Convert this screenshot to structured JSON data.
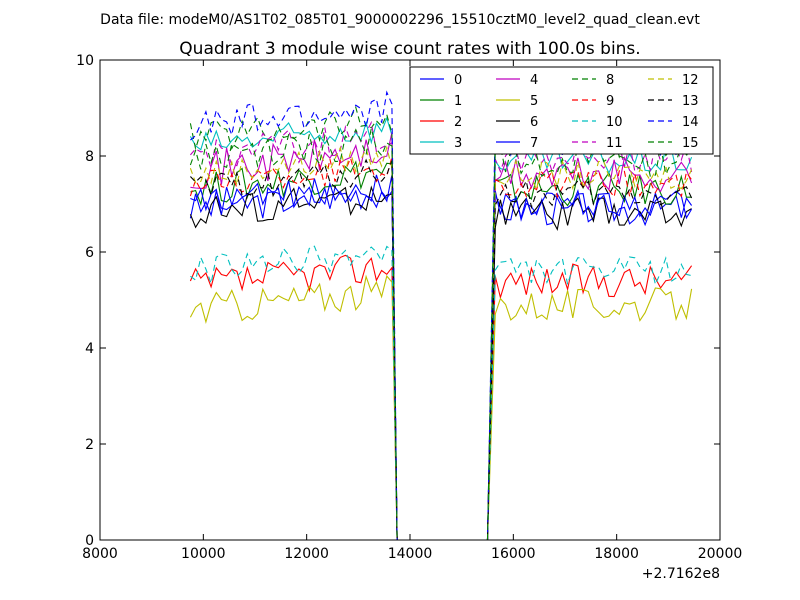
{
  "figure": {
    "suptitle": "Data file: modeM0/AS1T02_085T01_9000002296_15510cztM0_level2_quad_clean.evt"
  },
  "chart_data": {
    "type": "line",
    "title": "Quadrant 3 module wise count rates with 100.0s bins.",
    "xlabel": "",
    "ylabel": "",
    "x_offset_label": "+2.7162e8",
    "xlim": [
      8000,
      20000
    ],
    "ylim": [
      0,
      10
    ],
    "x_ticks": [
      8000,
      10000,
      12000,
      14000,
      16000,
      18000,
      20000
    ],
    "x_tick_labels": [
      "8000",
      "10000",
      "12000",
      "14000",
      "16000",
      "18000",
      "20000"
    ],
    "y_ticks": [
      0,
      2,
      4,
      6,
      8,
      10
    ],
    "y_tick_labels": [
      "0",
      "2",
      "4",
      "6",
      "8",
      "10"
    ],
    "grid": false,
    "legend_position": "top-right",
    "legend_columns": 4,
    "gap_start": 13750,
    "gap_end": 15500,
    "x": {
      "segment1": {
        "start": 9750,
        "end": 13650,
        "step": 100
      },
      "segment2": {
        "start": 15650,
        "end": 19450,
        "step": 100
      }
    },
    "series": [
      {
        "name": "0",
        "color": "#0000ff",
        "dash": "solid",
        "level1": 6.9,
        "level2": 6.9,
        "amplitude": 0.35
      },
      {
        "name": "1",
        "color": "#008000",
        "dash": "solid",
        "level1": 7.3,
        "level2": 7.3,
        "amplitude": 0.35
      },
      {
        "name": "2",
        "color": "#ff0000",
        "dash": "solid",
        "level1": 5.3,
        "level2": 5.4,
        "amplitude": 0.35
      },
      {
        "name": "3",
        "color": "#00bfbf",
        "dash": "solid",
        "level1": 8.2,
        "level2": 7.9,
        "amplitude": 0.3
      },
      {
        "name": "4",
        "color": "#bf00bf",
        "dash": "solid",
        "level1": 7.7,
        "level2": 7.6,
        "amplitude": 0.4
      },
      {
        "name": "5",
        "color": "#bfbf00",
        "dash": "solid",
        "level1": 4.8,
        "level2": 4.9,
        "amplitude": 0.35
      },
      {
        "name": "6",
        "color": "#000000",
        "dash": "solid",
        "level1": 6.8,
        "level2": 6.8,
        "amplitude": 0.35
      },
      {
        "name": "7",
        "color": "#0000ff",
        "dash": "solid",
        "level1": 7.0,
        "level2": 7.0,
        "amplitude": 0.3
      },
      {
        "name": "8",
        "color": "#008000",
        "dash": "dashed",
        "level1": 8.4,
        "level2": 8.3,
        "amplitude": 0.35
      },
      {
        "name": "9",
        "color": "#ff0000",
        "dash": "dashed",
        "level1": 7.4,
        "level2": 7.4,
        "amplitude": 0.3
      },
      {
        "name": "10",
        "color": "#00bfbf",
        "dash": "dashed",
        "level1": 5.6,
        "level2": 5.6,
        "amplitude": 0.3
      },
      {
        "name": "11",
        "color": "#bf00bf",
        "dash": "dashed",
        "level1": 8.0,
        "level2": 8.0,
        "amplitude": 0.35
      },
      {
        "name": "12",
        "color": "#bfbf00",
        "dash": "dashed",
        "level1": 7.6,
        "level2": 7.6,
        "amplitude": 0.3
      },
      {
        "name": "13",
        "color": "#000000",
        "dash": "dashed",
        "level1": 7.3,
        "level2": 7.2,
        "amplitude": 0.3
      },
      {
        "name": "14",
        "color": "#0000ff",
        "dash": "dashed",
        "level1": 8.6,
        "level2": 8.4,
        "amplitude": 0.4
      },
      {
        "name": "15",
        "color": "#008000",
        "dash": "dashed",
        "level1": 7.9,
        "level2": 7.9,
        "amplitude": 0.35
      }
    ]
  }
}
